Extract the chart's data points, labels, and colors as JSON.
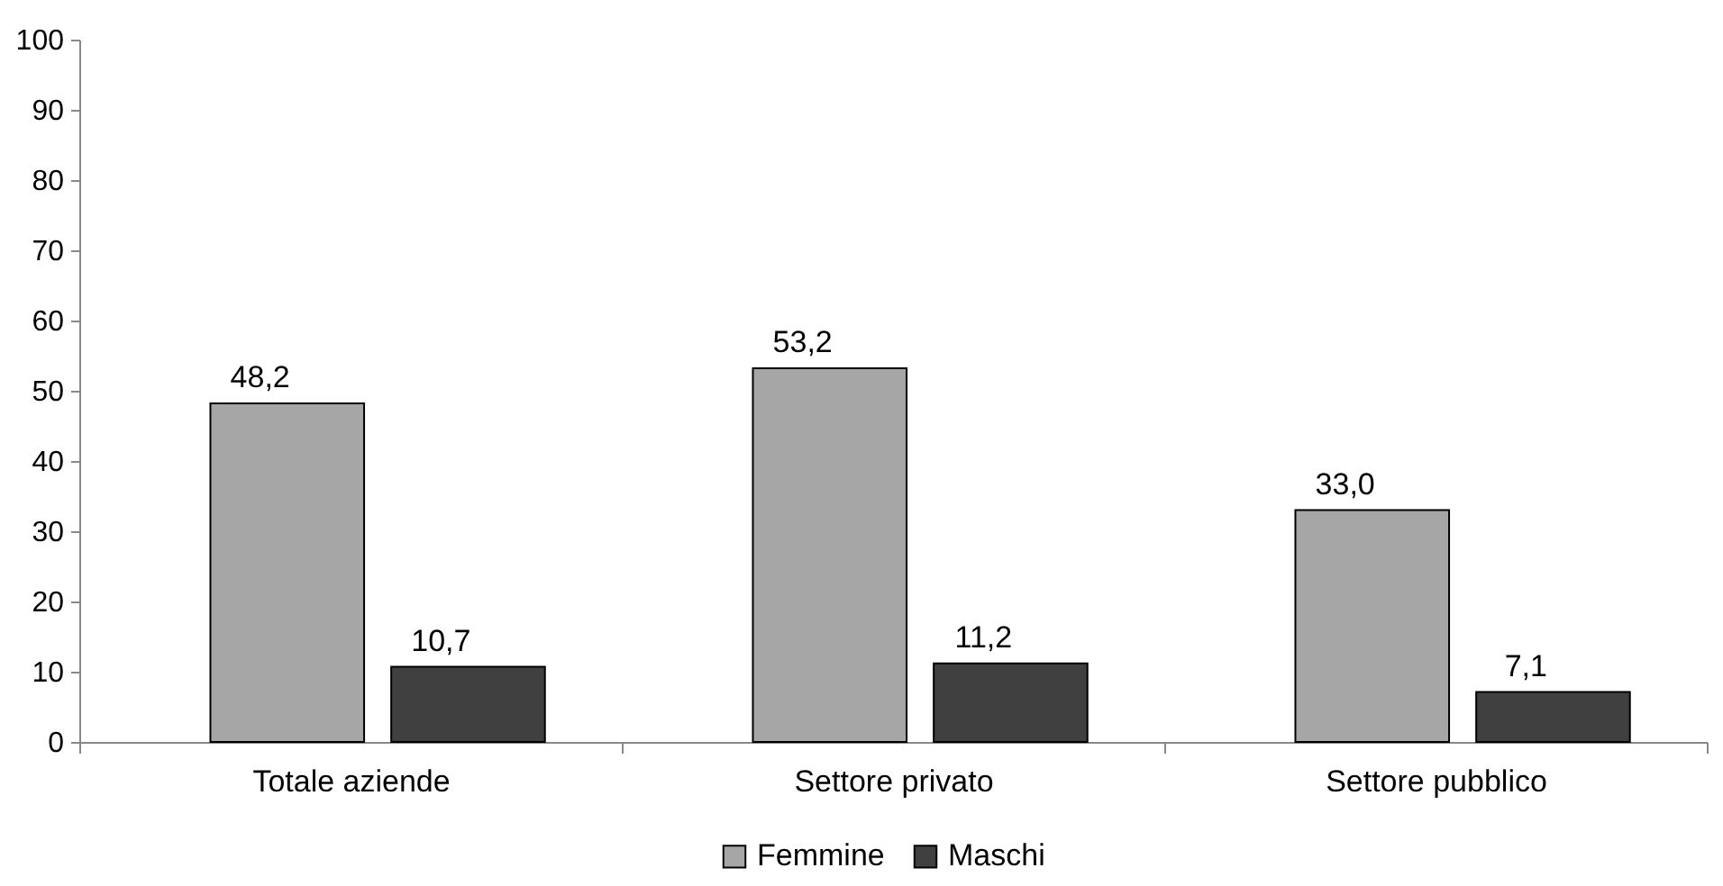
{
  "chart_data": {
    "type": "bar",
    "categories": [
      "Totale aziende",
      "Settore privato",
      "Settore pubblico"
    ],
    "series": [
      {
        "name": "Femmine",
        "color": "#a6a6a6",
        "values": [
          48.2,
          53.2,
          33.0
        ],
        "value_labels": [
          "48,2",
          "53,2",
          "33,0"
        ]
      },
      {
        "name": "Maschi",
        "color": "#404040",
        "values": [
          10.7,
          11.2,
          7.1
        ],
        "value_labels": [
          "10,7",
          "11,2",
          "7,1"
        ]
      }
    ],
    "ylim": [
      0,
      100
    ],
    "yticks": [
      0,
      10,
      20,
      30,
      40,
      50,
      60,
      70,
      80,
      90,
      100
    ],
    "grid": false,
    "legend": "bottom"
  }
}
